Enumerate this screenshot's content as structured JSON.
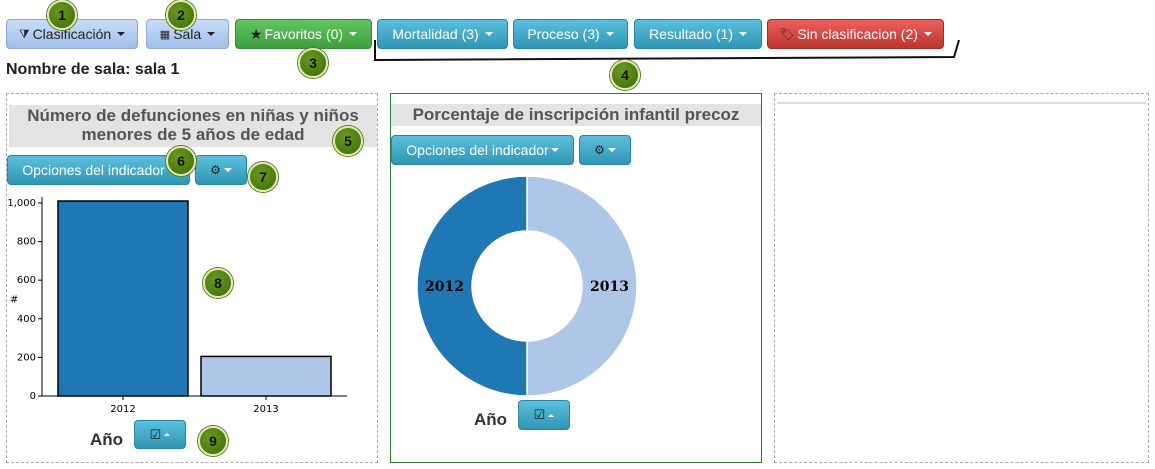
{
  "toolbar": {
    "clasificacion": "Clasificación",
    "sala": "Sala",
    "favoritos": "Favoritos (0)",
    "mortalidad": "Mortalidad (3)",
    "proceso": "Proceso (3)",
    "resultado": "Resultado (1)",
    "sin_clasificacion": "Sin clasificacion (2)"
  },
  "sala_name": "Nombre de sala: sala 1",
  "badges": [
    "1",
    "2",
    "3",
    "4",
    "5",
    "6",
    "7",
    "8",
    "9"
  ],
  "panel1": {
    "title": "Número de defunciones en niñas y niños menores de 5 años de edad",
    "options_label": "Opciones del indicador",
    "axis_footer": "Año"
  },
  "panel2": {
    "title": "Porcentaje de inscripción infantil precoz",
    "options_label": "Opciones del indicador",
    "axis_footer": "Año"
  },
  "colors": {
    "dark_blue": "#1f77b4",
    "light_blue": "#aec7e8",
    "green_border": "#2e7d32"
  },
  "chart_data": [
    {
      "type": "bar",
      "categories": [
        "2012",
        "2013"
      ],
      "values": [
        1010,
        205
      ],
      "ylabel": "#",
      "ylim": [
        0,
        1000
      ],
      "yticks": [
        "0",
        "200",
        "400",
        "600",
        "800",
        "1,000"
      ],
      "colors": [
        "#1f77b4",
        "#aec7e8"
      ]
    },
    {
      "type": "pie",
      "donut": true,
      "labels": [
        "2012",
        "2013"
      ],
      "values": [
        50,
        50
      ],
      "colors": [
        "#1f77b4",
        "#aec7e8"
      ]
    }
  ]
}
